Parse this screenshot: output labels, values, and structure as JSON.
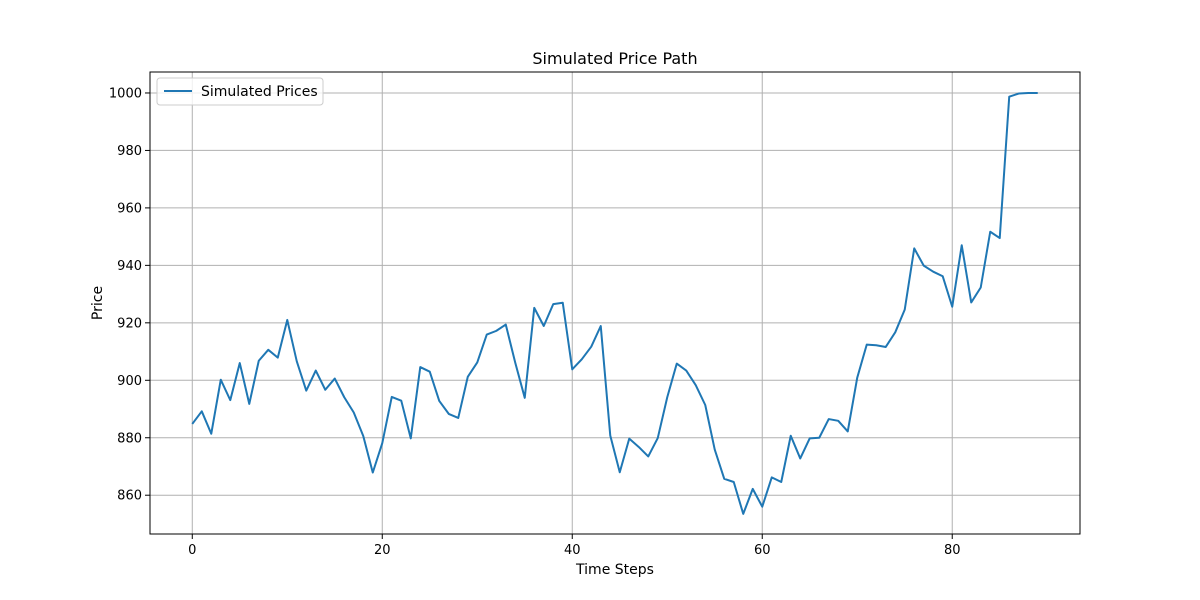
{
  "chart_data": {
    "type": "line",
    "title": "Simulated Price Path",
    "xlabel": "Time Steps",
    "ylabel": "Price",
    "xlim": [
      -4.45,
      93.45
    ],
    "ylim": [
      846.5,
      1007.3
    ],
    "xticks": [
      0,
      20,
      40,
      60,
      80
    ],
    "yticks": [
      860,
      880,
      900,
      920,
      940,
      960,
      980,
      1000
    ],
    "grid": true,
    "legend_position": "top-left",
    "series": [
      {
        "name": "Simulated Prices",
        "color": "#1f77b4",
        "x": [
          0,
          1,
          2,
          3,
          4,
          5,
          6,
          7,
          8,
          9,
          10,
          11,
          12,
          13,
          14,
          15,
          16,
          17,
          18,
          19,
          20,
          21,
          22,
          23,
          24,
          25,
          26,
          27,
          28,
          29,
          30,
          31,
          32,
          33,
          34,
          35,
          36,
          37,
          38,
          39,
          40,
          41,
          42,
          43,
          44,
          45,
          46,
          47,
          48,
          49,
          50,
          51,
          52,
          53,
          54,
          55,
          56,
          57,
          58,
          59,
          60,
          61,
          62,
          63,
          64,
          65,
          66,
          67,
          68,
          69,
          70,
          71,
          72,
          73,
          74,
          75,
          76,
          77,
          78,
          79,
          80,
          81,
          82,
          83,
          84,
          85,
          86,
          87,
          88,
          89
        ],
        "values": [
          884.8,
          889.2,
          881.4,
          900.2,
          893.1,
          906.0,
          891.8,
          906.8,
          910.6,
          907.9,
          921.0,
          906.6,
          896.4,
          903.4,
          896.7,
          900.6,
          894.1,
          888.8,
          880.6,
          867.9,
          878.1,
          894.2,
          892.9,
          879.8,
          904.6,
          903.0,
          892.8,
          888.3,
          886.9,
          901.2,
          906.2,
          915.9,
          917.2,
          919.4,
          906.1,
          893.9,
          925.2,
          918.9,
          926.5,
          927.0,
          903.8,
          907.3,
          911.7,
          918.9,
          880.8,
          868.0,
          879.7,
          876.8,
          873.5,
          879.9,
          894.1,
          905.8,
          903.4,
          898.3,
          891.4,
          875.9,
          865.7,
          864.6,
          853.5,
          862.2,
          856.0,
          866.2,
          864.6,
          880.7,
          872.8,
          879.8,
          880.0,
          886.5,
          885.9,
          882.2,
          900.9,
          912.4,
          912.2,
          911.6,
          916.7,
          924.6,
          945.9,
          939.9,
          937.8,
          936.2,
          925.6,
          947.0,
          927.1,
          932.3,
          951.7,
          949.5,
          998.7,
          999.8,
          1000.0,
          1000.0
        ]
      }
    ]
  }
}
